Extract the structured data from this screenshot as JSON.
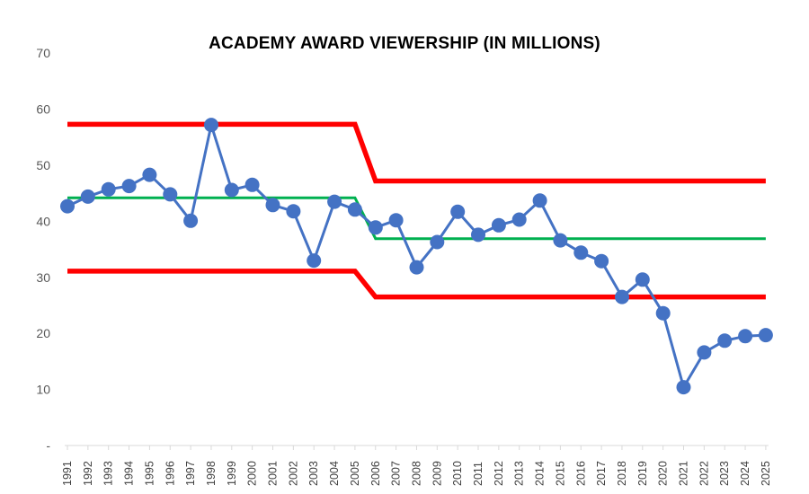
{
  "chart_data": {
    "type": "line",
    "title": "ACADEMY AWARD VIEWERSHIP (IN MILLIONS)",
    "xlabel": "",
    "ylabel": "",
    "ylim": [
      0,
      70
    ],
    "y_ticks": [
      "-",
      "10",
      "20",
      "30",
      "40",
      "50",
      "60",
      "70"
    ],
    "grid": false,
    "legend": "none",
    "categories": [
      "1991",
      "1992",
      "1993",
      "1994",
      "1995",
      "1996",
      "1997",
      "1998",
      "1999",
      "2000",
      "2001",
      "2002",
      "2003",
      "2004",
      "2005",
      "2006",
      "2007",
      "2008",
      "2009",
      "2010",
      "2011",
      "2012",
      "2013",
      "2014",
      "2015",
      "2016",
      "2017",
      "2018",
      "2019",
      "2020",
      "2021",
      "2022",
      "2023",
      "2024",
      "2025"
    ],
    "series": [
      {
        "color": "#4472c4",
        "marker": "circle",
        "values": [
          42.7,
          44.4,
          45.7,
          46.3,
          48.3,
          44.8,
          40.1,
          57.2,
          45.6,
          46.5,
          42.9,
          41.8,
          33.0,
          43.5,
          42.1,
          38.9,
          40.2,
          31.8,
          36.3,
          41.7,
          37.6,
          39.3,
          40.3,
          43.7,
          36.6,
          34.4,
          32.9,
          26.5,
          29.6,
          23.6,
          10.4,
          16.6,
          18.7,
          19.5,
          19.7
        ]
      },
      {
        "color": "#ff0000",
        "values": [
          57.3,
          57.3,
          57.3,
          57.3,
          57.3,
          57.3,
          57.3,
          57.3,
          57.3,
          57.3,
          57.3,
          57.3,
          57.3,
          57.3,
          57.3,
          47.2,
          47.2,
          47.2,
          47.2,
          47.2,
          47.2,
          47.2,
          47.2,
          47.2,
          47.2,
          47.2,
          47.2,
          47.2,
          47.2,
          47.2,
          47.2,
          47.2,
          47.2,
          47.2,
          47.2
        ]
      },
      {
        "color": "#00b050",
        "values": [
          44.2,
          44.2,
          44.2,
          44.2,
          44.2,
          44.2,
          44.2,
          44.2,
          44.2,
          44.2,
          44.2,
          44.2,
          44.2,
          44.2,
          44.2,
          36.9,
          36.9,
          36.9,
          36.9,
          36.9,
          36.9,
          36.9,
          36.9,
          36.9,
          36.9,
          36.9,
          36.9,
          36.9,
          36.9,
          36.9,
          36.9,
          36.9,
          36.9,
          36.9,
          36.9
        ]
      },
      {
        "color": "#ff0000",
        "values": [
          31.1,
          31.1,
          31.1,
          31.1,
          31.1,
          31.1,
          31.1,
          31.1,
          31.1,
          31.1,
          31.1,
          31.1,
          31.1,
          31.1,
          31.1,
          26.5,
          26.5,
          26.5,
          26.5,
          26.5,
          26.5,
          26.5,
          26.5,
          26.5,
          26.5,
          26.5,
          26.5,
          26.5,
          26.5,
          26.5,
          26.5,
          26.5,
          26.5,
          26.5,
          26.5
        ]
      }
    ]
  }
}
